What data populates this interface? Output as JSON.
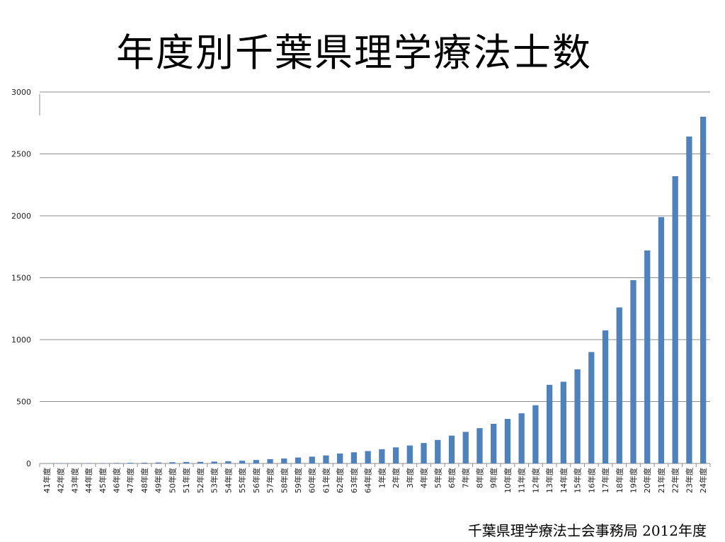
{
  "title": "年度別千葉県理学療法士数",
  "footer": "千葉県理学療法士会事務局  2012年度",
  "colors": {
    "bar": "#4F81BD",
    "grid": "#8C8C8C"
  },
  "chart_data": {
    "type": "bar",
    "title": "年度別千葉県理学療法士数",
    "xlabel": "",
    "ylabel": "",
    "ylim": [
      0,
      3000
    ],
    "yticks": [
      0,
      500,
      1000,
      1500,
      2000,
      2500,
      3000
    ],
    "grid": true,
    "legend": "none",
    "categories": [
      "41年度",
      "42年度",
      "43年度",
      "44年度",
      "45年度",
      "46年度",
      "47年度",
      "48年度",
      "49年度",
      "50年度",
      "51年度",
      "52年度",
      "53年度",
      "54年度",
      "55年度",
      "56年度",
      "57年度",
      "58年度",
      "59年度",
      "60年度",
      "61年度",
      "62年度",
      "63年度",
      "64年度",
      "1年度",
      "2年度",
      "3年度",
      "4年度",
      "5年度",
      "6年度",
      "7年度",
      "8年度",
      "9年度",
      "10年度",
      "11年度",
      "12年度",
      "13年度",
      "14年度",
      "15年度",
      "16年度",
      "17年度",
      "18年度",
      "19年度",
      "20年度",
      "21年度",
      "22年度",
      "23年度",
      "24年度"
    ],
    "values": [
      1,
      2,
      2,
      3,
      3,
      4,
      5,
      6,
      8,
      10,
      12,
      13,
      15,
      18,
      22,
      28,
      35,
      40,
      48,
      55,
      65,
      80,
      90,
      100,
      115,
      130,
      145,
      165,
      190,
      225,
      255,
      285,
      320,
      360,
      405,
      470,
      635,
      660,
      760,
      900,
      1075,
      1260,
      1480,
      1720,
      1990,
      2320,
      2640,
      2800
    ]
  }
}
